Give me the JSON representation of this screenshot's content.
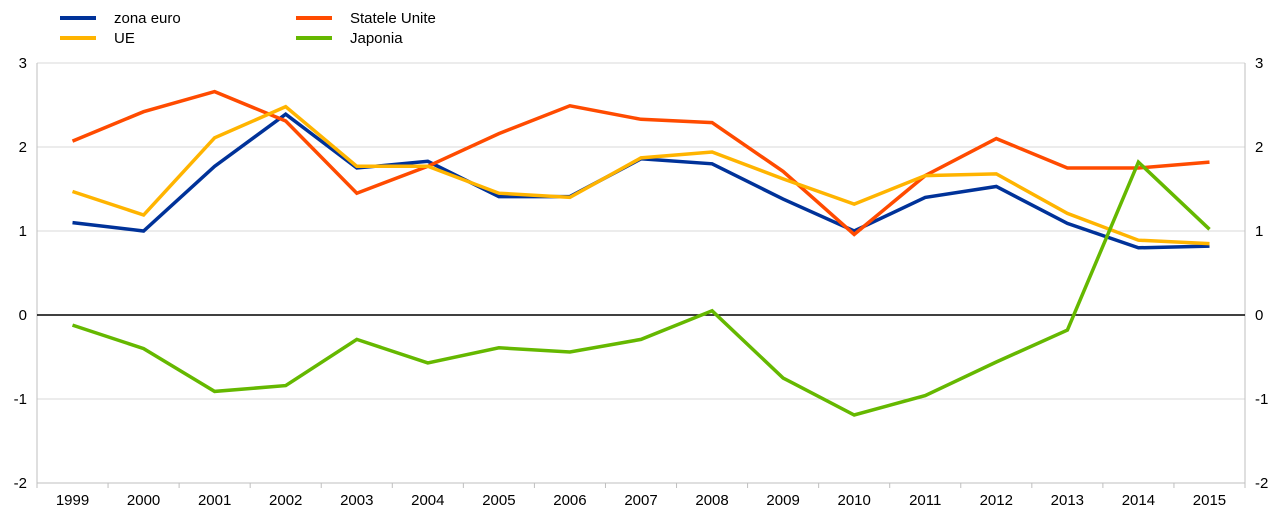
{
  "chart_data": {
    "type": "line",
    "title": "",
    "xlabel": "",
    "ylabel": "",
    "categories": [
      "1999",
      "2000",
      "2001",
      "2002",
      "2003",
      "2004",
      "2005",
      "2006",
      "2007",
      "2008",
      "2009",
      "2010",
      "2011",
      "2012",
      "2013",
      "2014",
      "2015"
    ],
    "ylim": [
      -2,
      3
    ],
    "yticks": [
      3,
      2,
      1,
      0,
      -1,
      -2
    ],
    "grid": true,
    "legend_position": "top-left",
    "series": [
      {
        "name": "zona euro",
        "color": "#003299",
        "values": [
          1.1,
          1.0,
          1.77,
          2.39,
          1.75,
          1.83,
          1.41,
          1.41,
          1.86,
          1.8,
          1.38,
          1.0,
          1.4,
          1.53,
          1.09,
          0.8,
          0.82
        ]
      },
      {
        "name": "Statele Unite",
        "color": "#ff4b00",
        "values": [
          2.07,
          2.42,
          2.66,
          2.31,
          1.45,
          1.77,
          2.16,
          2.49,
          2.33,
          2.29,
          1.71,
          0.96,
          1.66,
          2.1,
          1.75,
          1.75,
          1.82
        ]
      },
      {
        "name": "UE",
        "color": "#ffb400",
        "values": [
          1.47,
          1.19,
          2.11,
          2.48,
          1.77,
          1.77,
          1.45,
          1.4,
          1.87,
          1.94,
          1.62,
          1.32,
          1.66,
          1.68,
          1.21,
          0.89,
          0.85
        ]
      },
      {
        "name": "Japonia",
        "color": "#65b800",
        "values": [
          -0.12,
          -0.4,
          -0.91,
          -0.84,
          -0.29,
          -0.57,
          -0.39,
          -0.44,
          -0.29,
          0.05,
          -0.75,
          -1.19,
          -0.96,
          -0.56,
          -0.18,
          1.82,
          1.02
        ]
      }
    ]
  }
}
